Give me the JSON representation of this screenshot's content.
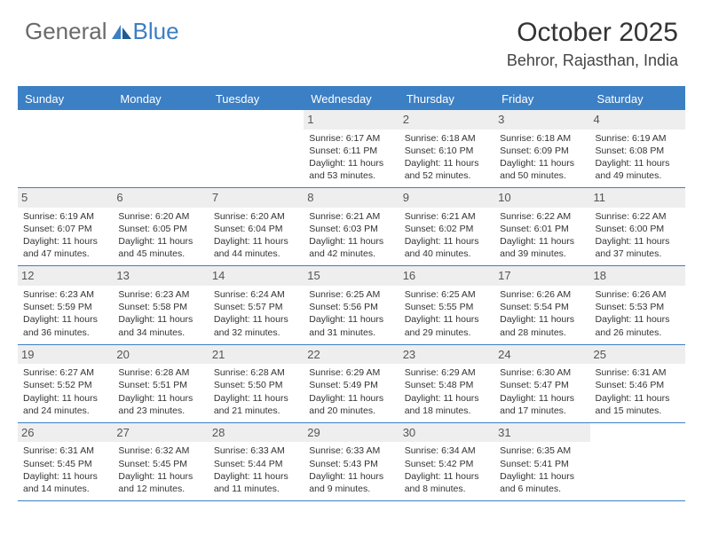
{
  "logo": {
    "text1": "General",
    "text2": "Blue"
  },
  "title": "October 2025",
  "location": "Behror, Rajasthan, India",
  "colors": {
    "accent": "#3b7fc4",
    "day_header_bg": "#eeeeee",
    "text": "#333333",
    "logo_gray": "#6a6a6a"
  },
  "weekdays": [
    "Sunday",
    "Monday",
    "Tuesday",
    "Wednesday",
    "Thursday",
    "Friday",
    "Saturday"
  ],
  "weeks": [
    [
      {
        "n": "",
        "lines": []
      },
      {
        "n": "",
        "lines": []
      },
      {
        "n": "",
        "lines": []
      },
      {
        "n": "1",
        "lines": [
          "Sunrise: 6:17 AM",
          "Sunset: 6:11 PM",
          "Daylight: 11 hours",
          "and 53 minutes."
        ]
      },
      {
        "n": "2",
        "lines": [
          "Sunrise: 6:18 AM",
          "Sunset: 6:10 PM",
          "Daylight: 11 hours",
          "and 52 minutes."
        ]
      },
      {
        "n": "3",
        "lines": [
          "Sunrise: 6:18 AM",
          "Sunset: 6:09 PM",
          "Daylight: 11 hours",
          "and 50 minutes."
        ]
      },
      {
        "n": "4",
        "lines": [
          "Sunrise: 6:19 AM",
          "Sunset: 6:08 PM",
          "Daylight: 11 hours",
          "and 49 minutes."
        ]
      }
    ],
    [
      {
        "n": "5",
        "lines": [
          "Sunrise: 6:19 AM",
          "Sunset: 6:07 PM",
          "Daylight: 11 hours",
          "and 47 minutes."
        ]
      },
      {
        "n": "6",
        "lines": [
          "Sunrise: 6:20 AM",
          "Sunset: 6:05 PM",
          "Daylight: 11 hours",
          "and 45 minutes."
        ]
      },
      {
        "n": "7",
        "lines": [
          "Sunrise: 6:20 AM",
          "Sunset: 6:04 PM",
          "Daylight: 11 hours",
          "and 44 minutes."
        ]
      },
      {
        "n": "8",
        "lines": [
          "Sunrise: 6:21 AM",
          "Sunset: 6:03 PM",
          "Daylight: 11 hours",
          "and 42 minutes."
        ]
      },
      {
        "n": "9",
        "lines": [
          "Sunrise: 6:21 AM",
          "Sunset: 6:02 PM",
          "Daylight: 11 hours",
          "and 40 minutes."
        ]
      },
      {
        "n": "10",
        "lines": [
          "Sunrise: 6:22 AM",
          "Sunset: 6:01 PM",
          "Daylight: 11 hours",
          "and 39 minutes."
        ]
      },
      {
        "n": "11",
        "lines": [
          "Sunrise: 6:22 AM",
          "Sunset: 6:00 PM",
          "Daylight: 11 hours",
          "and 37 minutes."
        ]
      }
    ],
    [
      {
        "n": "12",
        "lines": [
          "Sunrise: 6:23 AM",
          "Sunset: 5:59 PM",
          "Daylight: 11 hours",
          "and 36 minutes."
        ]
      },
      {
        "n": "13",
        "lines": [
          "Sunrise: 6:23 AM",
          "Sunset: 5:58 PM",
          "Daylight: 11 hours",
          "and 34 minutes."
        ]
      },
      {
        "n": "14",
        "lines": [
          "Sunrise: 6:24 AM",
          "Sunset: 5:57 PM",
          "Daylight: 11 hours",
          "and 32 minutes."
        ]
      },
      {
        "n": "15",
        "lines": [
          "Sunrise: 6:25 AM",
          "Sunset: 5:56 PM",
          "Daylight: 11 hours",
          "and 31 minutes."
        ]
      },
      {
        "n": "16",
        "lines": [
          "Sunrise: 6:25 AM",
          "Sunset: 5:55 PM",
          "Daylight: 11 hours",
          "and 29 minutes."
        ]
      },
      {
        "n": "17",
        "lines": [
          "Sunrise: 6:26 AM",
          "Sunset: 5:54 PM",
          "Daylight: 11 hours",
          "and 28 minutes."
        ]
      },
      {
        "n": "18",
        "lines": [
          "Sunrise: 6:26 AM",
          "Sunset: 5:53 PM",
          "Daylight: 11 hours",
          "and 26 minutes."
        ]
      }
    ],
    [
      {
        "n": "19",
        "lines": [
          "Sunrise: 6:27 AM",
          "Sunset: 5:52 PM",
          "Daylight: 11 hours",
          "and 24 minutes."
        ]
      },
      {
        "n": "20",
        "lines": [
          "Sunrise: 6:28 AM",
          "Sunset: 5:51 PM",
          "Daylight: 11 hours",
          "and 23 minutes."
        ]
      },
      {
        "n": "21",
        "lines": [
          "Sunrise: 6:28 AM",
          "Sunset: 5:50 PM",
          "Daylight: 11 hours",
          "and 21 minutes."
        ]
      },
      {
        "n": "22",
        "lines": [
          "Sunrise: 6:29 AM",
          "Sunset: 5:49 PM",
          "Daylight: 11 hours",
          "and 20 minutes."
        ]
      },
      {
        "n": "23",
        "lines": [
          "Sunrise: 6:29 AM",
          "Sunset: 5:48 PM",
          "Daylight: 11 hours",
          "and 18 minutes."
        ]
      },
      {
        "n": "24",
        "lines": [
          "Sunrise: 6:30 AM",
          "Sunset: 5:47 PM",
          "Daylight: 11 hours",
          "and 17 minutes."
        ]
      },
      {
        "n": "25",
        "lines": [
          "Sunrise: 6:31 AM",
          "Sunset: 5:46 PM",
          "Daylight: 11 hours",
          "and 15 minutes."
        ]
      }
    ],
    [
      {
        "n": "26",
        "lines": [
          "Sunrise: 6:31 AM",
          "Sunset: 5:45 PM",
          "Daylight: 11 hours",
          "and 14 minutes."
        ]
      },
      {
        "n": "27",
        "lines": [
          "Sunrise: 6:32 AM",
          "Sunset: 5:45 PM",
          "Daylight: 11 hours",
          "and 12 minutes."
        ]
      },
      {
        "n": "28",
        "lines": [
          "Sunrise: 6:33 AM",
          "Sunset: 5:44 PM",
          "Daylight: 11 hours",
          "and 11 minutes."
        ]
      },
      {
        "n": "29",
        "lines": [
          "Sunrise: 6:33 AM",
          "Sunset: 5:43 PM",
          "Daylight: 11 hours",
          "and 9 minutes."
        ]
      },
      {
        "n": "30",
        "lines": [
          "Sunrise: 6:34 AM",
          "Sunset: 5:42 PM",
          "Daylight: 11 hours",
          "and 8 minutes."
        ]
      },
      {
        "n": "31",
        "lines": [
          "Sunrise: 6:35 AM",
          "Sunset: 5:41 PM",
          "Daylight: 11 hours",
          "and 6 minutes."
        ]
      },
      {
        "n": "",
        "lines": []
      }
    ]
  ]
}
